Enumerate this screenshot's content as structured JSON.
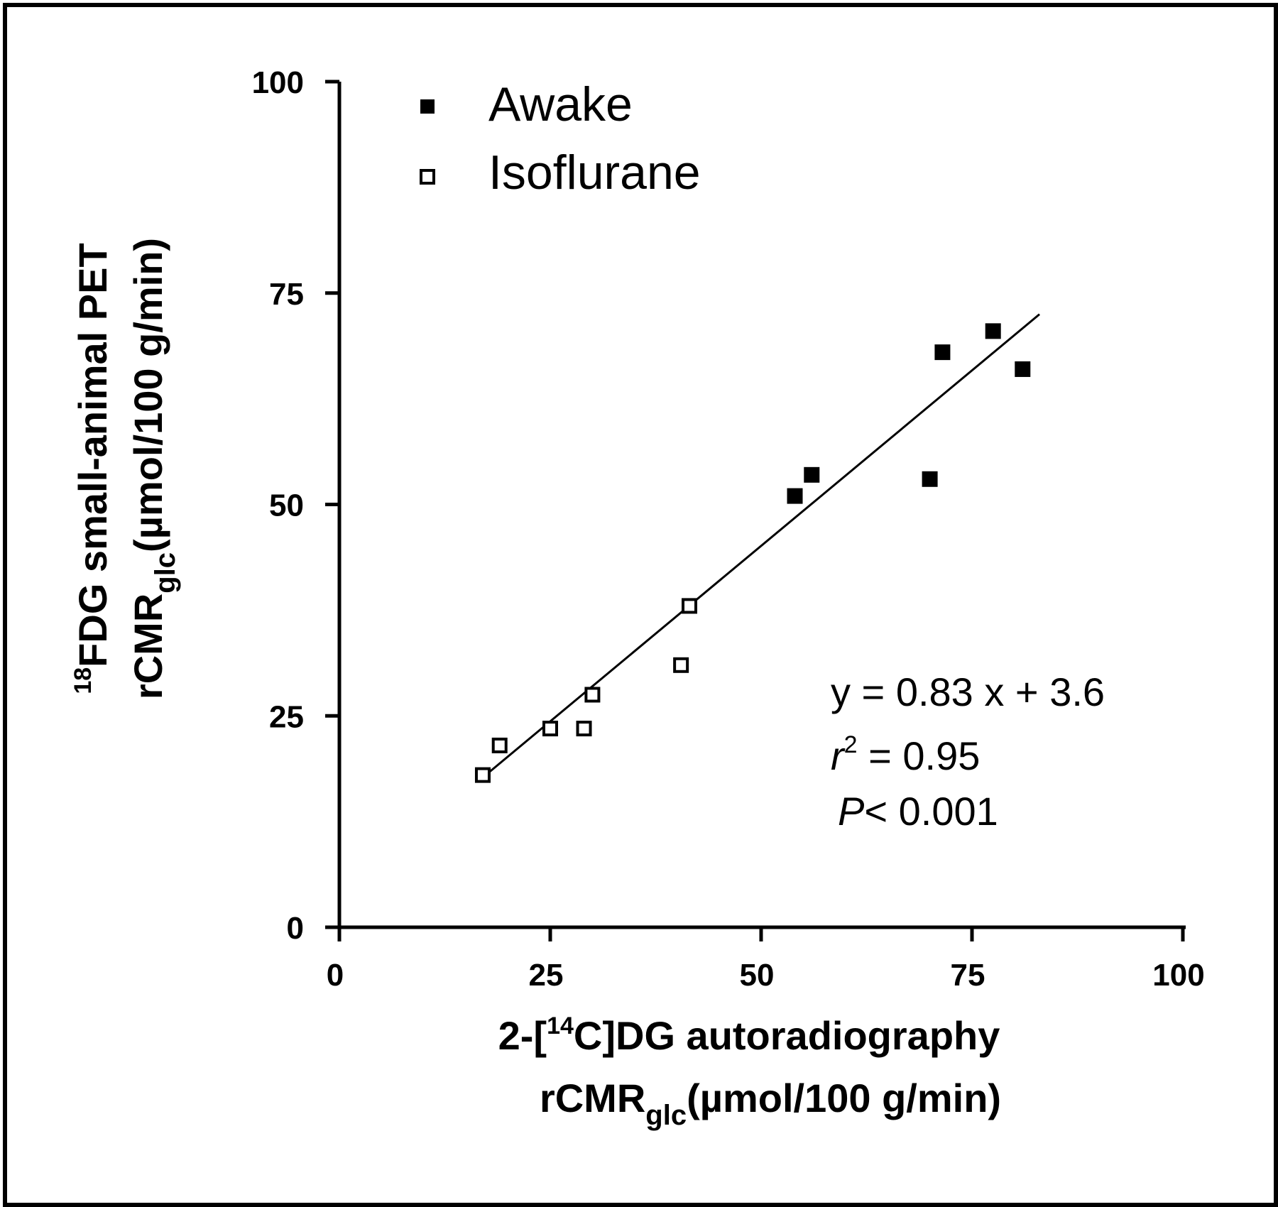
{
  "chart_data": {
    "type": "scatter",
    "xlim": [
      0,
      100
    ],
    "ylim": [
      0,
      100
    ],
    "x_ticks": [
      "0",
      "25",
      "50",
      "75",
      "100"
    ],
    "y_ticks": [
      "0",
      "25",
      "50",
      "75",
      "100"
    ],
    "grid": false,
    "legend_position": "top-left",
    "xlabel": {
      "line1_prefix": "2-[",
      "line1_sup": "14",
      "line1_suffix": "C]DG autoradiography",
      "line2_main": "rCMR",
      "line2_sub": "glc",
      "line2_units": "(µmol/100 g/min)"
    },
    "ylabel": {
      "line1_sup": "18",
      "line1_text": "FDG small-animal PET",
      "line2_main": "rCMR",
      "line2_sub": "glc",
      "line2_units": "(µmol/100 g/min)"
    },
    "series": [
      {
        "name": "Awake",
        "marker": "filled-square",
        "points": [
          {
            "x": 54,
            "y": 51
          },
          {
            "x": 56,
            "y": 53.5
          },
          {
            "x": 70,
            "y": 53
          },
          {
            "x": 71.5,
            "y": 68
          },
          {
            "x": 77.5,
            "y": 70.5
          },
          {
            "x": 81,
            "y": 66
          }
        ]
      },
      {
        "name": "Isoflurane",
        "marker": "open-square",
        "points": [
          {
            "x": 17,
            "y": 18
          },
          {
            "x": 19,
            "y": 21.5
          },
          {
            "x": 25,
            "y": 23.5
          },
          {
            "x": 29,
            "y": 23.5
          },
          {
            "x": 30,
            "y": 27.5
          },
          {
            "x": 40.5,
            "y": 31
          },
          {
            "x": 41.5,
            "y": 38
          }
        ]
      }
    ],
    "fit": {
      "slope": 0.83,
      "intercept": 3.6,
      "x_range": [
        16.5,
        83
      ]
    },
    "annotations": {
      "equation": "y = 0.83 x + 3.6",
      "r2_var": "r",
      "r2_sup": "2",
      "r2_value": " = 0.95",
      "p_var": "P",
      "p_value": "< 0.001"
    }
  }
}
